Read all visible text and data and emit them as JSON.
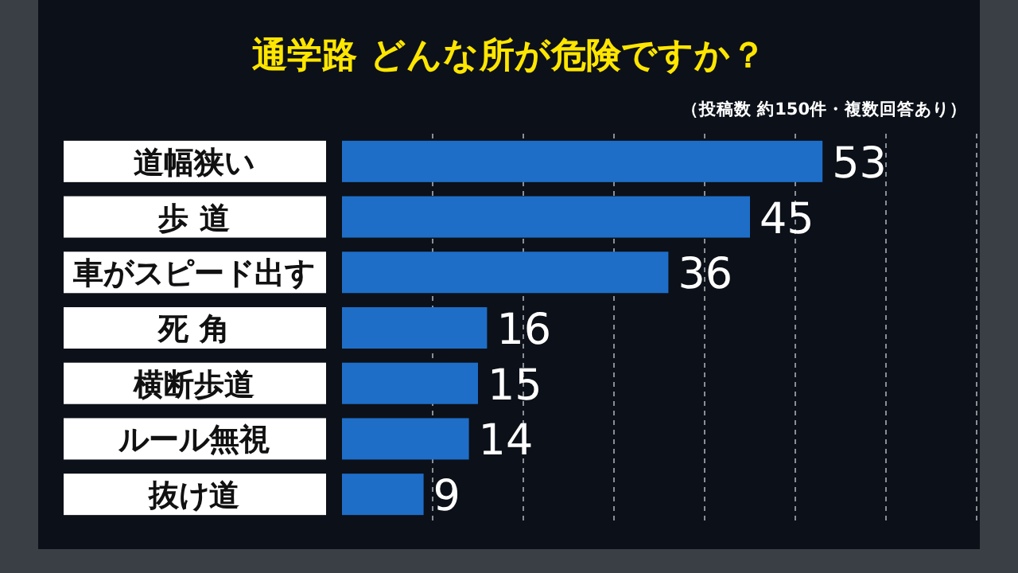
{
  "chart_data": {
    "type": "bar",
    "orientation": "horizontal",
    "title": "通学路 どんな所が危険ですか？",
    "subtitle": "（投稿数 約150件・複数回答あり）",
    "categories": [
      "道幅狭い",
      "歩 道",
      "車がスピード出す",
      "死 角",
      "横断歩道",
      "ルール無視",
      "抜け道"
    ],
    "values": [
      53,
      45,
      36,
      16,
      15,
      14,
      9
    ],
    "color": "#1e6ec8",
    "data_labels": true,
    "xlim": [
      0,
      70
    ],
    "xticks": [
      {
        "value": 10,
        "label": null
      },
      {
        "value": 20,
        "label": null
      },
      {
        "value": 30,
        "label": null
      },
      {
        "value": 40,
        "label": null
      },
      {
        "value": 50,
        "label": null
      },
      {
        "value": 60,
        "label": null
      },
      {
        "value": 70,
        "label": null
      }
    ],
    "grid": "x"
  }
}
